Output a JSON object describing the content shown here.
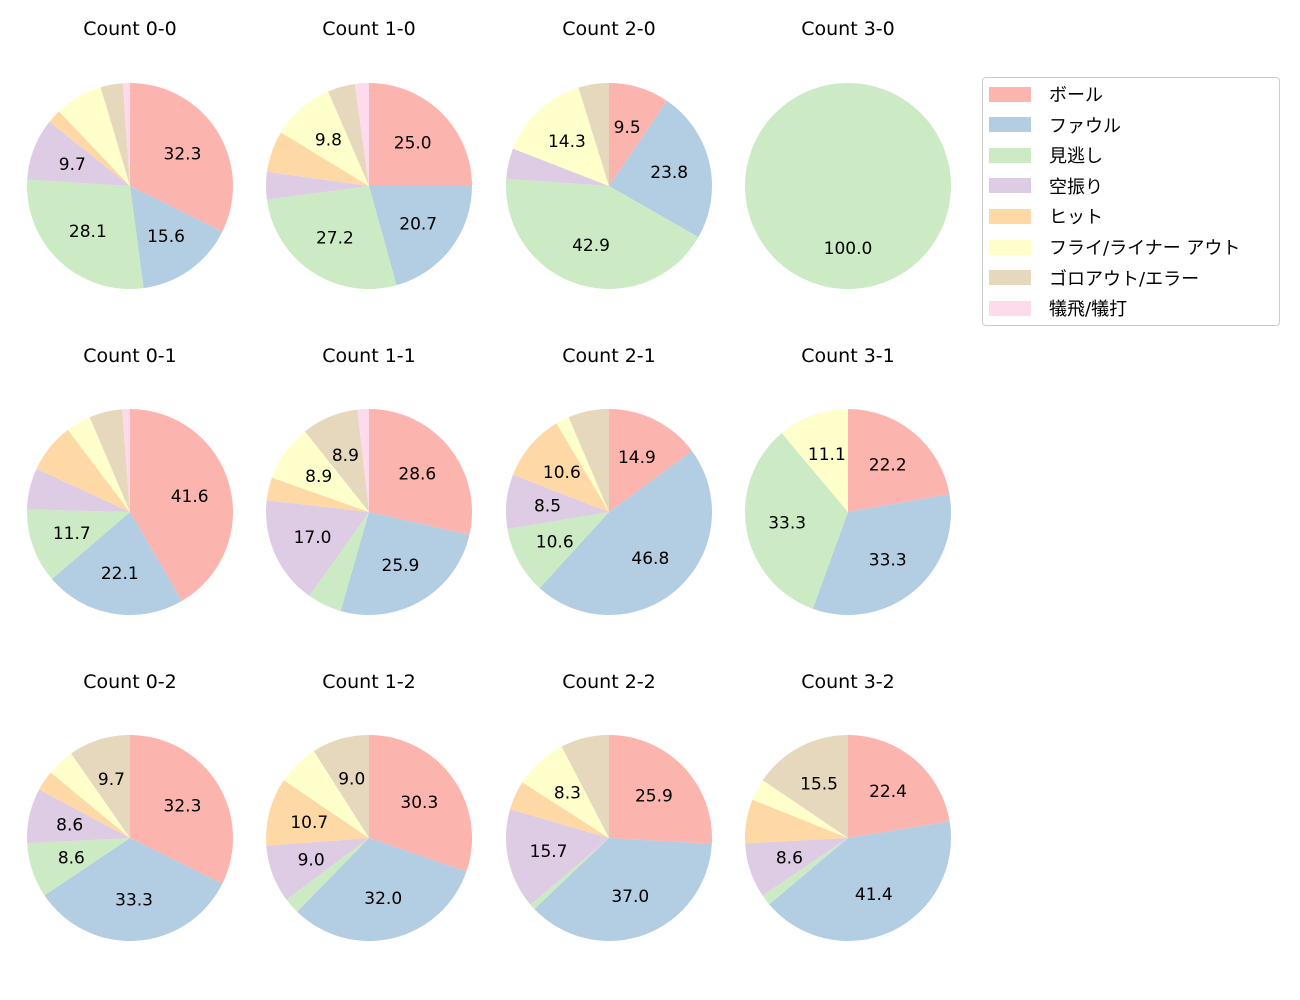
{
  "chart_data": {
    "type": "pie",
    "legend_position": "right",
    "label_threshold_pct": 8,
    "categories": [
      "ボール",
      "ファウル",
      "見逃し",
      "空振り",
      "ヒット",
      "フライ/ライナー アウト",
      "ゴロアウト/エラー",
      "犠飛/犠打"
    ],
    "colors": [
      "#fbb4ae",
      "#b3cde3",
      "#ccebc5",
      "#decbe4",
      "#fed9a6",
      "#ffffcc",
      "#e5d8bd",
      "#fddaec"
    ],
    "pies": [
      {
        "title": "Count 0-0",
        "values": [
          32.3,
          15.6,
          28.1,
          9.7,
          2.2,
          7.5,
          3.5,
          1.1
        ]
      },
      {
        "title": "Count 1-0",
        "values": [
          25.0,
          20.7,
          27.2,
          4.3,
          6.5,
          9.8,
          4.3,
          2.2
        ]
      },
      {
        "title": "Count 2-0",
        "values": [
          9.5,
          23.8,
          42.9,
          4.8,
          0,
          14.3,
          4.8,
          0
        ]
      },
      {
        "title": "Count 3-0",
        "values": [
          0,
          0,
          100.0,
          0,
          0,
          0,
          0,
          0
        ]
      },
      {
        "title": "Count 0-1",
        "values": [
          41.6,
          22.1,
          11.7,
          6.5,
          7.8,
          3.9,
          5.2,
          1.2
        ]
      },
      {
        "title": "Count 1-1",
        "values": [
          28.6,
          25.9,
          5.4,
          17.0,
          3.6,
          8.9,
          8.9,
          1.8
        ]
      },
      {
        "title": "Count 2-1",
        "values": [
          14.9,
          46.8,
          10.6,
          8.5,
          10.6,
          2.1,
          6.4,
          0
        ]
      },
      {
        "title": "Count 3-1",
        "values": [
          22.2,
          33.3,
          33.3,
          0,
          0,
          11.1,
          0,
          0
        ]
      },
      {
        "title": "Count 0-2",
        "values": [
          32.3,
          33.3,
          8.6,
          8.6,
          3.2,
          4.3,
          9.7,
          0
        ]
      },
      {
        "title": "Count 1-2",
        "values": [
          30.3,
          32.0,
          2.5,
          9.0,
          10.7,
          6.5,
          9.0,
          0
        ]
      },
      {
        "title": "Count 2-2",
        "values": [
          25.9,
          37.0,
          0.9,
          15.7,
          4.6,
          8.3,
          7.6,
          0
        ]
      },
      {
        "title": "Count 3-2",
        "values": [
          22.4,
          41.4,
          1.7,
          8.6,
          6.9,
          3.4,
          15.5,
          0
        ]
      }
    ]
  }
}
